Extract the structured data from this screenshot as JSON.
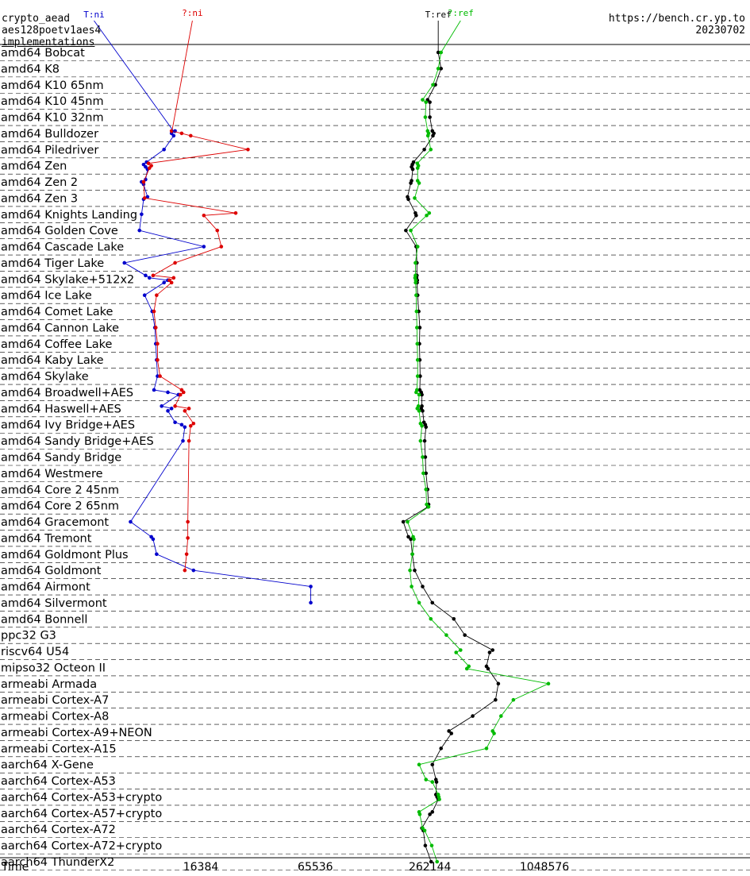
{
  "header": {
    "line1": "crypto_aead",
    "line2": "aes128poetv1aes4",
    "line3": "implementations",
    "url": "https://bench.cr.yp.to",
    "date": "20230702"
  },
  "chart_data": {
    "type": "scatter",
    "xscale": "log2",
    "xlabel": "Time",
    "xticks": [
      16384,
      65536,
      262144,
      1048576
    ],
    "xtick_labels": [
      "16384",
      "65536",
      "262144",
      "1048576"
    ],
    "series": [
      {
        "name": "T:ni",
        "color": "#0000cc"
      },
      {
        "name": "?:ni",
        "color": "#dd0000"
      },
      {
        "name": "T:ref",
        "color": "#000000"
      },
      {
        "name": "?:ref",
        "color": "#00bb00"
      }
    ],
    "rows": [
      {
        "label": "amd64 Bobcat",
        "ref": [
          290000
        ],
        "qref": [
          300000
        ]
      },
      {
        "label": "amd64 K8",
        "ref": [
          300000
        ],
        "qref": [
          290000
        ]
      },
      {
        "label": "amd64 K10 65nm",
        "ref": [
          280000
        ],
        "qref": [
          272000
        ]
      },
      {
        "label": "amd64 K10 45nm",
        "ref": [
          255000,
          262000
        ],
        "qref": [
          240000,
          250000
        ]
      },
      {
        "label": "amd64 K10 32nm",
        "ref": [
          262000
        ],
        "qref": [
          248000
        ]
      },
      {
        "label": "amd64 Bulldozer",
        "ni": [
          12000,
          11500,
          11800
        ],
        "qni": [
          11500,
          13000,
          14500
        ],
        "ref": [
          270000,
          275000,
          272000
        ],
        "qref": [
          255000,
          258000,
          256000
        ]
      },
      {
        "label": "amd64 Piledriver",
        "ni": [
          10500
        ],
        "qni": [
          29000
        ],
        "ref": [
          245000
        ],
        "qref": [
          265000
        ]
      },
      {
        "label": "amd64 Zen",
        "ni": [
          8500,
          8200,
          8400,
          8600
        ],
        "qni": [
          8700,
          9000,
          8800
        ],
        "ref": [
          215000,
          212000,
          210000,
          213000
        ],
        "qref": [
          225000,
          228000,
          226000
        ]
      },
      {
        "label": "amd64 Zen 2",
        "ni": [
          8400,
          8000,
          8200
        ],
        "qni": [
          8200
        ],
        "ref": [
          210000,
          208000
        ],
        "qref": [
          226000,
          230000
        ]
      },
      {
        "label": "amd64 Zen 3",
        "ni": [
          8600,
          8200
        ],
        "qni": [
          8300
        ],
        "ref": [
          200000,
          202000
        ],
        "qref": [
          218000
        ]
      },
      {
        "label": "amd64 Knights Landing",
        "ni": [
          8000
        ],
        "qni": [
          25000,
          17000
        ],
        "ref": [
          220000,
          222000
        ],
        "qref": [
          260000,
          252000
        ]
      },
      {
        "label": "amd64 Golden Cove",
        "ni": [
          7800
        ],
        "qni": [
          20000
        ],
        "ref": [
          196000
        ],
        "qref": [
          208000
        ]
      },
      {
        "label": "amd64 Cascade Lake",
        "ni": [
          17000
        ],
        "qni": [
          21000
        ],
        "ref": [
          222000
        ],
        "qref": [
          226000
        ]
      },
      {
        "label": "amd64 Tiger Lake",
        "ni": [
          6500
        ],
        "qni": [
          12000
        ],
        "ref": [
          224000
        ],
        "qref": [
          220000
        ]
      },
      {
        "label": "amd64 Skylake+512x2",
        "ni": [
          8400,
          8800,
          11000,
          10500
        ],
        "qni": [
          9200,
          11800,
          11200,
          11500
        ],
        "ref": [
          224000,
          223000,
          225000,
          224500
        ],
        "qref": [
          220000,
          219000,
          221000,
          220500
        ]
      },
      {
        "label": "amd64 Ice Lake",
        "ni": [
          8300
        ],
        "qni": [
          9600
        ],
        "ref": [
          226000
        ],
        "qref": [
          222000
        ]
      },
      {
        "label": "amd64 Comet Lake",
        "ni": [
          9100
        ],
        "qni": [
          9300
        ],
        "ref": [
          229000
        ],
        "qref": [
          223000
        ]
      },
      {
        "label": "amd64 Cannon Lake",
        "ni": [
          9400
        ],
        "qni": [
          9500
        ],
        "ref": [
          232000
        ],
        "qref": [
          224000
        ]
      },
      {
        "label": "amd64 Coffee Lake",
        "ni": [
          9500
        ],
        "qni": [
          9700
        ],
        "ref": [
          231000
        ],
        "qref": [
          225000
        ]
      },
      {
        "label": "amd64 Kaby Lake",
        "ni": [
          9600
        ],
        "qni": [
          9700
        ],
        "ref": [
          232000
        ],
        "qref": [
          226000
        ]
      },
      {
        "label": "amd64 Skylake",
        "ni": [
          9700
        ],
        "qni": [
          10000
        ],
        "ref": [
          233000
        ],
        "qref": [
          226000
        ]
      },
      {
        "label": "amd64 Broadwell+AES",
        "ni": [
          9300,
          11000,
          12500
        ],
        "qni": [
          13000,
          13300,
          12800
        ],
        "ref": [
          232000,
          236000,
          238000
        ],
        "qref": [
          224000,
          222000,
          230000
        ]
      },
      {
        "label": "amd64 Haswell+AES",
        "ni": [
          10200,
          11500,
          11000
        ],
        "qni": [
          12000,
          14200,
          13500
        ],
        "ref": [
          238000,
          236000,
          240000
        ],
        "qref": [
          228000,
          225000,
          230000
        ]
      },
      {
        "label": "amd64 Ivy Bridge+AES",
        "ni": [
          12000,
          13000,
          13500
        ],
        "qni": [
          15000,
          14500
        ],
        "ref": [
          244000,
          248000,
          250000
        ],
        "qref": [
          234000,
          238000
        ]
      },
      {
        "label": "amd64 Sandy Bridge+AES",
        "ni": [
          13200
        ],
        "qni": [
          14200
        ],
        "ref": [
          246000
        ],
        "qref": [
          234000
        ]
      },
      {
        "label": "amd64 Sandy Bridge",
        "ref": [
          248000
        ],
        "qref": [
          240000
        ]
      },
      {
        "label": "amd64 Westmere",
        "ref": [
          250000
        ],
        "qref": [
          242000
        ]
      },
      {
        "label": "amd64 Core 2 45nm",
        "ref": [
          255000
        ],
        "qref": [
          250000
        ]
      },
      {
        "label": "amd64 Core 2 65nm",
        "ref": [
          258000,
          256000
        ],
        "qref": [
          252000,
          258000
        ]
      },
      {
        "label": "amd64 Gracemont",
        "ni": [
          7000
        ],
        "qni": [
          14000
        ],
        "ref": [
          190000
        ],
        "qref": [
          200000
        ]
      },
      {
        "label": "amd64 Tremont",
        "ni": [
          9000,
          9200
        ],
        "qni": [
          14000
        ],
        "ref": [
          202000,
          208000
        ],
        "qref": [
          214000,
          216000
        ]
      },
      {
        "label": "amd64 Goldmont Plus",
        "ni": [
          9600
        ],
        "qni": [
          13800
        ],
        "ref": [
          212000
        ],
        "qref": [
          212000
        ]
      },
      {
        "label": "amd64 Goldmont",
        "ni": [
          15000
        ],
        "qni": [
          13500
        ],
        "ref": [
          218000
        ],
        "qref": [
          206000
        ]
      },
      {
        "label": "amd64 Airmont",
        "ni": [
          62000
        ],
        "ref": [
          240000
        ],
        "qref": [
          210000
        ]
      },
      {
        "label": "amd64 Silvermont",
        "ni": [
          62000
        ],
        "ref": [
          270000
        ],
        "qref": [
          230000
        ]
      },
      {
        "label": "amd64 Bonnell",
        "ref": [
          350000
        ],
        "qref": [
          265000
        ]
      },
      {
        "label": "ppc32 G3",
        "ref": [
          400000
        ],
        "qref": [
          320000
        ]
      },
      {
        "label": "riscv64 U54",
        "ref": [
          560000,
          540000
        ],
        "qref": [
          380000,
          360000
        ]
      },
      {
        "label": "mipso32 Octeon II",
        "ref": [
          520000,
          530000
        ],
        "qref": [
          420000,
          410000
        ]
      },
      {
        "label": "armeabi Armada",
        "ref": [
          600000
        ],
        "qref": [
          1100000
        ]
      },
      {
        "label": "armeabi Cortex-A7",
        "ref": [
          580000
        ],
        "qref": [
          720000
        ]
      },
      {
        "label": "armeabi Cortex-A8",
        "ref": [
          440000
        ],
        "qref": [
          620000
        ]
      },
      {
        "label": "armeabi Cortex-A9+NEON",
        "ref": [
          330000,
          340000
        ],
        "qref": [
          560000,
          570000
        ]
      },
      {
        "label": "armeabi Cortex-A15",
        "ref": [
          300000
        ],
        "qref": [
          520000
        ]
      },
      {
        "label": "aarch64 X-Gene",
        "ref": [
          270000
        ],
        "qref": [
          230000
        ]
      },
      {
        "label": "aarch64 Cortex-A53",
        "ref": [
          282000,
          284000
        ],
        "qref": [
          250000,
          270000
        ]
      },
      {
        "label": "aarch64 Cortex-A53+crypto",
        "ref": [
          282000,
          286000,
          290000
        ],
        "qref": [
          290000,
          292000,
          294000
        ]
      },
      {
        "label": "aarch64 Cortex-A57+crypto",
        "ref": [
          270000,
          262000
        ],
        "qref": [
          230000,
          232000
        ]
      },
      {
        "label": "aarch64 Cortex-A72",
        "ref": [
          238000,
          242000
        ],
        "qref": [
          240000,
          246000
        ]
      },
      {
        "label": "aarch64 Cortex-A72+crypto",
        "ref": [
          248000
        ],
        "qref": [
          268000
        ]
      },
      {
        "label": "aarch64 ThunderX2",
        "ref": [
          266000
        ],
        "qref": [
          286000
        ]
      }
    ]
  }
}
